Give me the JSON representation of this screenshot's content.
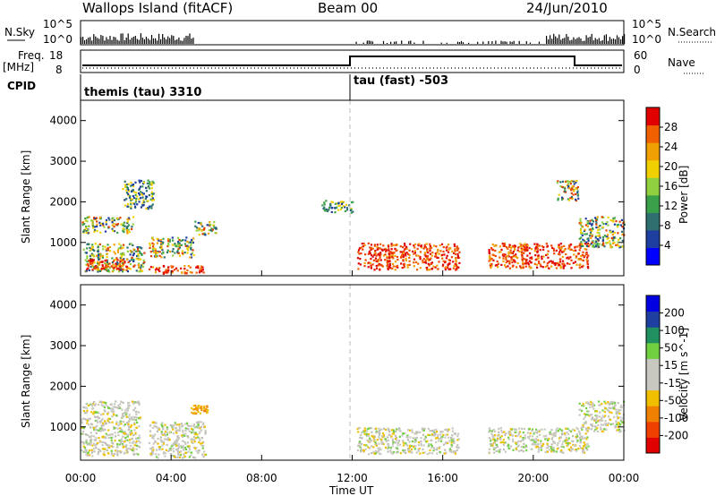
{
  "header": {
    "title": "Wallops Island (fitACF)",
    "beam": "Beam 00",
    "date": "24/Jun/2010"
  },
  "top_panels": {
    "nsky_label": "N.Sky",
    "nsky_ticks": [
      "10^5",
      "10^0"
    ],
    "nsearch_label": "N.Search",
    "nsearch_ticks": [
      "10^5",
      "10^0"
    ],
    "freq_label": "Freq.",
    "freq_unit": "[MHz]",
    "freq_ticks": [
      "18",
      "8"
    ],
    "nave_label": "Nave",
    "nave_ticks": [
      "60",
      "0"
    ],
    "cpid_label": "CPID",
    "cpid_segments": [
      {
        "label": "themis (tau) 3310",
        "start_hour": 0,
        "end_hour": 12
      },
      {
        "label": "tau (fast) -503",
        "start_hour": 12,
        "end_hour": 24
      }
    ]
  },
  "chart_data": [
    {
      "type": "heatmap",
      "title": "",
      "ylabel": "Slant Range [km]",
      "xlabel": "",
      "x_range_hours": [
        0,
        24
      ],
      "ylim": [
        180,
        4500
      ],
      "y_ticks": [
        1000,
        2000,
        3000,
        4000
      ],
      "colorbar": {
        "label": "Power [dB]",
        "ticks": [
          "28",
          "24",
          "20",
          "16",
          "12",
          "8",
          "4"
        ],
        "range": [
          0,
          30
        ],
        "colors": [
          "#0000ff",
          "#1f3fa0",
          "#2f6f6f",
          "#3aa04a",
          "#90d040",
          "#f0d000",
          "#f0a000",
          "#f06000",
          "#e00000"
        ]
      },
      "echo_regions": [
        {
          "t0": 0.0,
          "t1": 2.3,
          "r0": 1250,
          "r1": 1650,
          "level": "mid"
        },
        {
          "t0": 0.1,
          "t1": 2.8,
          "r0": 300,
          "r1": 1000,
          "level": "mid"
        },
        {
          "t0": 0.2,
          "t1": 2.0,
          "r0": 350,
          "r1": 600,
          "level": "high"
        },
        {
          "t0": 3.0,
          "t1": 5.5,
          "r0": 250,
          "r1": 450,
          "level": "high"
        },
        {
          "t0": 3.0,
          "t1": 5.0,
          "r0": 650,
          "r1": 1150,
          "level": "mid"
        },
        {
          "t0": 1.8,
          "t1": 3.2,
          "r0": 1850,
          "r1": 2550,
          "level": "low"
        },
        {
          "t0": 5.0,
          "t1": 6.0,
          "r0": 1200,
          "r1": 1550,
          "level": "mid"
        },
        {
          "t0": 10.6,
          "t1": 12.0,
          "r0": 1750,
          "r1": 2050,
          "level": "low"
        },
        {
          "t0": 12.2,
          "t1": 16.7,
          "r0": 350,
          "r1": 1000,
          "level": "high"
        },
        {
          "t0": 18.0,
          "t1": 22.4,
          "r0": 380,
          "r1": 1000,
          "level": "high"
        },
        {
          "t0": 21.0,
          "t1": 22.0,
          "r0": 2050,
          "r1": 2550,
          "level": "mid"
        },
        {
          "t0": 22.0,
          "t1": 24.0,
          "r0": 900,
          "r1": 1650,
          "level": "mid"
        }
      ]
    },
    {
      "type": "heatmap",
      "title": "",
      "ylabel": "Slant Range [km]",
      "xlabel": "Time UT",
      "x_range_hours": [
        0,
        24
      ],
      "x_ticks": [
        "00:00",
        "04:00",
        "08:00",
        "12:00",
        "16:00",
        "20:00",
        "00:00"
      ],
      "ylim": [
        180,
        4500
      ],
      "y_ticks": [
        1000,
        2000,
        3000,
        4000
      ],
      "colorbar": {
        "label": "Velocity [m s^-1]",
        "ticks": [
          "200",
          "100",
          "50",
          "15",
          "-15",
          "-50",
          "-100",
          "-200"
        ],
        "range": [
          -250,
          250
        ],
        "colors": [
          "#e00000",
          "#f04000",
          "#f08000",
          "#f0c000",
          "#c8c8c0",
          "#c8c8c0",
          "#70d040",
          "#209060",
          "#1f3fa0",
          "#0000e0"
        ]
      },
      "echo_regions": [
        {
          "t0": 0.0,
          "t1": 2.6,
          "r0": 300,
          "r1": 1650,
          "level": "grey"
        },
        {
          "t0": 3.0,
          "t1": 5.5,
          "r0": 250,
          "r1": 1150,
          "level": "grey"
        },
        {
          "t0": 4.8,
          "t1": 5.6,
          "r0": 1350,
          "r1": 1550,
          "level": "orange"
        },
        {
          "t0": 12.2,
          "t1": 16.7,
          "r0": 350,
          "r1": 1000,
          "level": "grey"
        },
        {
          "t0": 18.0,
          "t1": 22.4,
          "r0": 380,
          "r1": 1000,
          "level": "grey"
        },
        {
          "t0": 22.0,
          "t1": 24.0,
          "r0": 900,
          "r1": 1650,
          "level": "grey"
        }
      ]
    }
  ]
}
